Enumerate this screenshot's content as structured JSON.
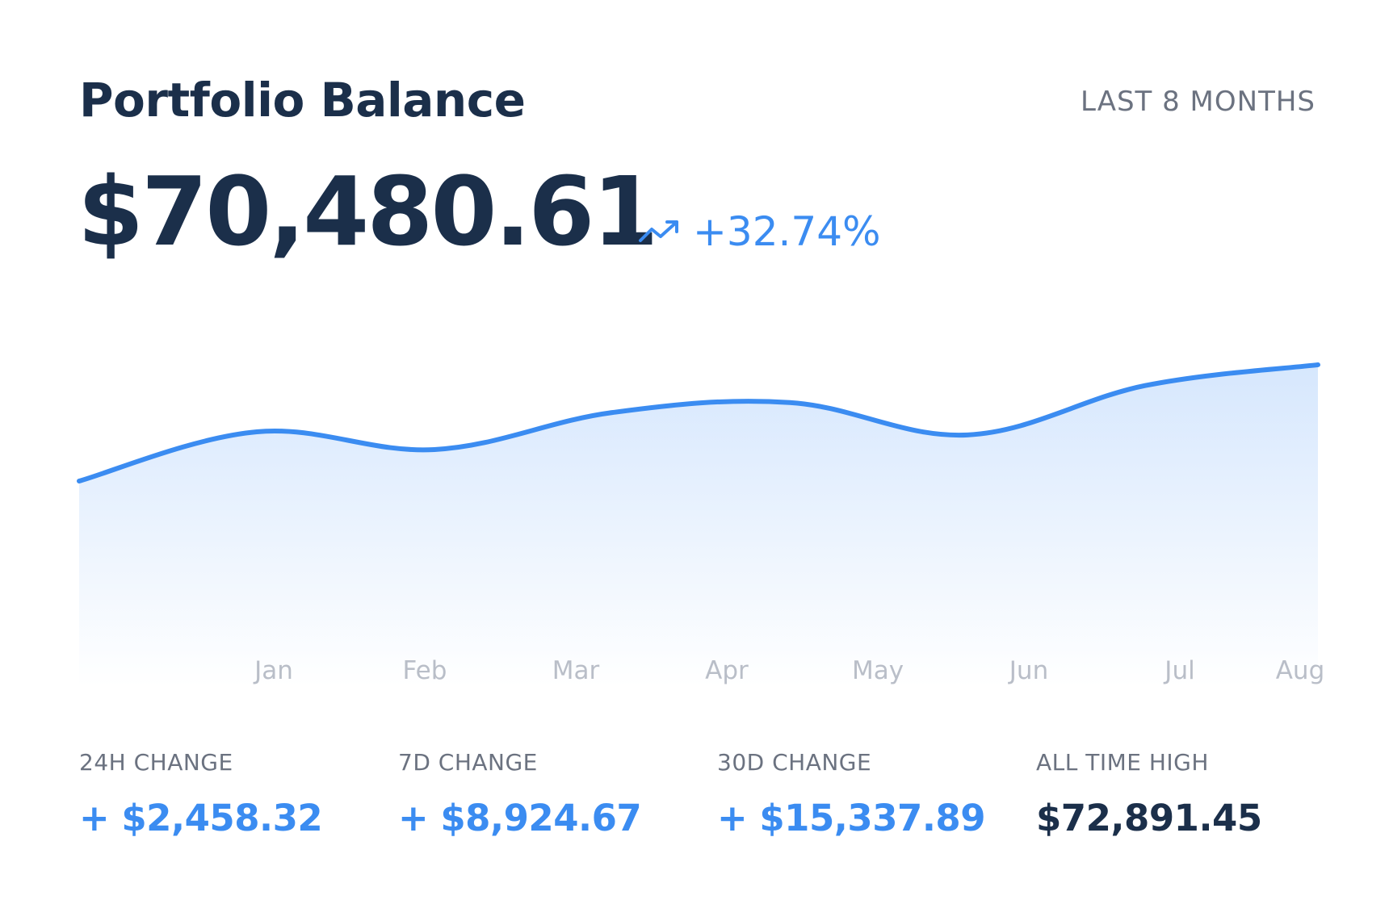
{
  "header": {
    "title": "Portfolio Balance",
    "period": "LAST 8 MONTHS"
  },
  "balance": {
    "value": "$70,480.61",
    "change": "+32.74%",
    "trend_icon": "trending-up-icon"
  },
  "colors": {
    "primary_text": "#1b2f4a",
    "accent": "#3b8cf1",
    "muted": "#6b7280",
    "axis_label": "#b9bec8",
    "area_top": "#d6e7fd",
    "area_bottom": "#ffffff"
  },
  "chart_data": {
    "type": "area",
    "categories": [
      "Jan",
      "Feb",
      "Mar",
      "Apr",
      "May",
      "Jun",
      "Jul",
      "Aug"
    ],
    "series": [
      {
        "values": [
          53800,
          58200,
          57300,
          61500,
          64000,
          60300,
          67000,
          69700
        ]
      }
    ],
    "ylim": [
      0,
      75000
    ],
    "grid": false,
    "legend": "none"
  },
  "stats": [
    {
      "label": "24H CHANGE",
      "value": "+ $2,458.32",
      "tone": "accent"
    },
    {
      "label": "7D CHANGE",
      "value": "+ $8,924.67",
      "tone": "accent"
    },
    {
      "label": "30D CHANGE",
      "value": "+ $15,337.89",
      "tone": "accent"
    },
    {
      "label": "ALL TIME HIGH",
      "value": "$72,891.45",
      "tone": "primary"
    }
  ]
}
